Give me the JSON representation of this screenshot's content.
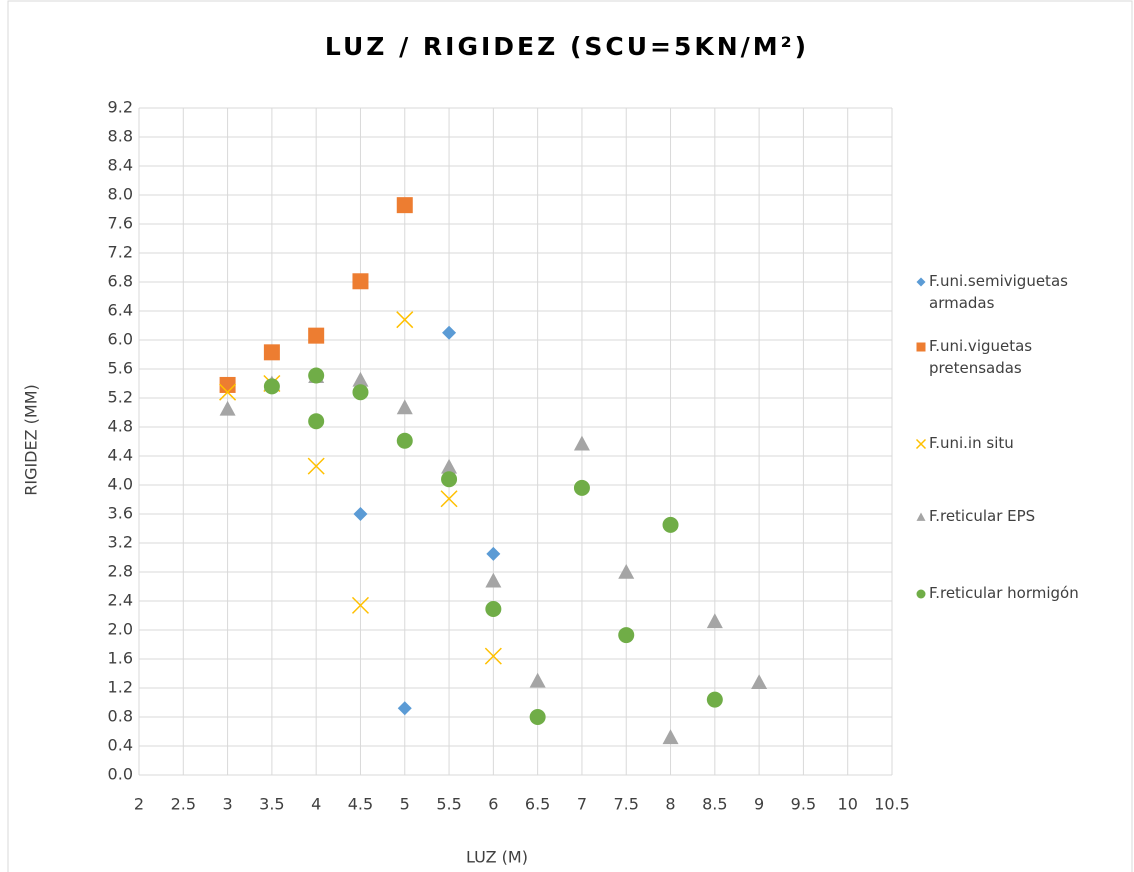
{
  "chart_data": {
    "type": "scatter",
    "title": "LUZ / RIGIDEZ (SCU=5KN/M²)",
    "x_label": "LUZ (M)",
    "y_label": "RIGIDEZ (MM)",
    "xlim": [
      2,
      10.5
    ],
    "xticks": [
      2,
      2.5,
      3,
      3.5,
      4,
      4.5,
      5,
      5.5,
      6,
      6.5,
      7,
      7.5,
      8,
      8.5,
      9,
      9.5,
      10,
      10.5
    ],
    "ylim": [
      0,
      9.2
    ],
    "yticks": [
      {
        "value": 0,
        "label": "0.0"
      },
      0.4,
      0.8,
      1.2,
      1.6,
      {
        "value": 2,
        "label": "2.0"
      },
      2.4,
      2.8,
      3.2,
      3.6,
      {
        "value": 4,
        "label": "4.0"
      },
      4.4,
      4.8,
      5.2,
      5.6,
      {
        "value": 6,
        "label": "6.0"
      },
      6.4,
      6.8,
      7.2,
      7.6,
      {
        "value": 8,
        "label": "8.0"
      },
      8.4,
      8.8,
      9.2
    ],
    "grid": true,
    "legend": "right",
    "series": [
      {
        "name": "F.uni.semiviguetas armadas",
        "color": "#5b9bd5",
        "marker": "diamond",
        "x": [
          4.5,
          5,
          5.5,
          6
        ],
        "values": [
          3.6,
          0.92,
          6.1,
          3.05
        ]
      },
      {
        "name": "F.uni.viguetas pretensadas",
        "color": "#ed7d31",
        "marker": "square",
        "x": [
          3,
          3.5,
          4,
          4.5,
          5
        ],
        "values": [
          5.38,
          5.83,
          6.06,
          6.81,
          7.86
        ]
      },
      {
        "name": "F.uni.in situ",
        "color": "#ffc000",
        "marker": "x",
        "x": [
          3,
          3.5,
          4,
          4.5,
          5,
          5.5,
          6
        ],
        "values": [
          5.28,
          5.4,
          4.26,
          2.34,
          6.28,
          3.81,
          1.64
        ]
      },
      {
        "name": "F.reticular EPS",
        "color": "#a5a5a5",
        "marker": "triangle",
        "x": [
          3,
          3.5,
          4,
          4.5,
          5,
          5.5,
          6,
          6.5,
          7,
          7.5,
          8,
          8.5,
          9
        ],
        "values": [
          5.05,
          5.4,
          5.5,
          5.45,
          5.07,
          4.25,
          2.68,
          1.3,
          4.57,
          2.8,
          0.52,
          2.12,
          1.28
        ]
      },
      {
        "name": "F.reticular hormigón",
        "color": "#70ad47",
        "marker": "circle",
        "x": [
          3.5,
          4,
          4,
          4.5,
          5,
          5.5,
          6,
          6.5,
          7,
          7.5,
          8,
          8.5
        ],
        "values": [
          5.36,
          5.51,
          4.88,
          5.28,
          4.61,
          4.08,
          2.29,
          0.8,
          3.96,
          1.93,
          3.45,
          1.04
        ]
      }
    ]
  }
}
